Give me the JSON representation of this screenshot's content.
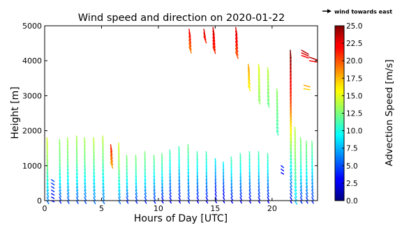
{
  "chart_data": {
    "type": "quiver",
    "title": "Wind speed and direction on 2020-01-22",
    "xlabel": "Hours of Day [UTC]",
    "ylabel": "Height [m]",
    "xlim": [
      0,
      24
    ],
    "ylim": [
      0,
      5000
    ],
    "x_ticks": [
      "0",
      "5",
      "10",
      "15",
      "20"
    ],
    "x_tick_values": [
      0,
      5,
      10,
      15,
      20
    ],
    "y_ticks": [
      "0",
      "1000",
      "2000",
      "3000",
      "4000",
      "5000"
    ],
    "y_tick_values": [
      0,
      1000,
      2000,
      3000,
      4000,
      5000
    ],
    "grid": false,
    "key_label": "wind towards east",
    "colorbar": {
      "label": "Advection Speed [m/s]",
      "range": [
        0,
        25
      ],
      "colormap": "jet",
      "tick_values": [
        0,
        2.5,
        5,
        7.5,
        10,
        12.5,
        15,
        17.5,
        20,
        22.5,
        25
      ],
      "tick_labels": [
        "0.0",
        "2.5",
        "5.0",
        "7.5",
        "10.0",
        "12.5",
        "15.0",
        "17.5",
        "20.0",
        "22.5",
        "25.0"
      ]
    },
    "columns": [
      {
        "hour": 0.2,
        "low": 0,
        "high": 1800,
        "speed": [
          6,
          10,
          13,
          14.5
        ],
        "dir_deg": [
          150,
          165,
          172,
          175
        ]
      },
      {
        "hour": 0.6,
        "low": 0,
        "high": 600,
        "speed": [
          3,
          5
        ],
        "dir_deg": [
          115,
          125
        ]
      },
      {
        "hour": 1.3,
        "low": 0,
        "high": 1750,
        "speed": [
          4,
          9,
          12,
          13
        ],
        "dir_deg": [
          150,
          165,
          172,
          175
        ]
      },
      {
        "hour": 2.0,
        "low": 0,
        "high": 1800,
        "speed": [
          5,
          9,
          12,
          13.5
        ],
        "dir_deg": [
          150,
          165,
          172,
          175
        ]
      },
      {
        "hour": 2.8,
        "low": 0,
        "high": 1850,
        "speed": [
          5,
          9,
          12,
          13.5
        ],
        "dir_deg": [
          150,
          165,
          172,
          175
        ]
      },
      {
        "hour": 3.5,
        "low": 0,
        "high": 1800,
        "speed": [
          5,
          9,
          12,
          13.5
        ],
        "dir_deg": [
          150,
          165,
          172,
          175
        ]
      },
      {
        "hour": 4.3,
        "low": 0,
        "high": 1800,
        "speed": [
          6,
          9,
          12,
          14
        ],
        "dir_deg": [
          150,
          165,
          172,
          175
        ]
      },
      {
        "hour": 5.1,
        "low": 0,
        "high": 1850,
        "speed": [
          6,
          9,
          12,
          14
        ],
        "dir_deg": [
          150,
          165,
          172,
          175
        ]
      },
      {
        "hour": 5.8,
        "low": 1100,
        "high": 1600,
        "speed": [
          18,
          21
        ],
        "dir_deg": [
          160,
          170
        ]
      },
      {
        "hour": 6.5,
        "low": 0,
        "high": 1650,
        "speed": [
          6,
          10,
          13,
          14.5
        ],
        "dir_deg": [
          150,
          165,
          172,
          175
        ]
      },
      {
        "hour": 7.2,
        "low": 0,
        "high": 1300,
        "speed": [
          4,
          8,
          11,
          12.5
        ],
        "dir_deg": [
          150,
          165,
          172,
          175
        ]
      },
      {
        "hour": 8.0,
        "low": 0,
        "high": 1300,
        "speed": [
          4,
          8,
          11,
          12.5
        ],
        "dir_deg": [
          150,
          165,
          172,
          175
        ]
      },
      {
        "hour": 8.8,
        "low": 0,
        "high": 1400,
        "speed": [
          4,
          8,
          11,
          12.5
        ],
        "dir_deg": [
          150,
          165,
          172,
          175
        ]
      },
      {
        "hour": 9.6,
        "low": 0,
        "high": 1300,
        "speed": [
          4,
          7,
          10,
          12
        ],
        "dir_deg": [
          150,
          165,
          172,
          175
        ]
      },
      {
        "hour": 10.3,
        "low": 0,
        "high": 1350,
        "speed": [
          3,
          7,
          10,
          12
        ],
        "dir_deg": [
          150,
          165,
          172,
          175
        ]
      },
      {
        "hour": 11.0,
        "low": 0,
        "high": 1450,
        "speed": [
          3,
          6,
          9,
          11
        ],
        "dir_deg": [
          150,
          165,
          172,
          175
        ]
      },
      {
        "hour": 11.8,
        "low": 0,
        "high": 1550,
        "speed": [
          3,
          6,
          9,
          11
        ],
        "dir_deg": [
          150,
          165,
          172,
          175
        ]
      },
      {
        "hour": 12.6,
        "low": 0,
        "high": 1600,
        "speed": [
          4,
          7,
          10,
          12
        ],
        "dir_deg": [
          150,
          165,
          172,
          175
        ]
      },
      {
        "hour": 12.7,
        "low": 4400,
        "high": 4900,
        "speed": [
          19,
          22
        ],
        "dir_deg": [
          160,
          170
        ]
      },
      {
        "hour": 13.4,
        "low": 0,
        "high": 1400,
        "speed": [
          3,
          6,
          9,
          11
        ],
        "dir_deg": [
          150,
          165,
          172,
          175
        ]
      },
      {
        "hour": 14.0,
        "low": 4700,
        "high": 4900,
        "speed": [
          21,
          23
        ],
        "dir_deg": [
          160,
          170
        ]
      },
      {
        "hour": 14.2,
        "low": 0,
        "high": 1400,
        "speed": [
          3,
          6,
          9,
          11
        ],
        "dir_deg": [
          150,
          165,
          172,
          175
        ]
      },
      {
        "hour": 14.8,
        "low": 4400,
        "high": 4950,
        "speed": [
          21,
          23
        ],
        "dir_deg": [
          160,
          170
        ]
      },
      {
        "hour": 15.0,
        "low": 0,
        "high": 1200,
        "speed": [
          2,
          4,
          7,
          9
        ],
        "dir_deg": [
          150,
          165,
          172,
          175
        ]
      },
      {
        "hour": 15.7,
        "low": 0,
        "high": 1100,
        "speed": [
          2,
          4,
          7,
          9
        ],
        "dir_deg": [
          150,
          165,
          172,
          175
        ]
      },
      {
        "hour": 16.4,
        "low": 0,
        "high": 1250,
        "speed": [
          3,
          6,
          9,
          11
        ],
        "dir_deg": [
          150,
          165,
          172,
          175
        ]
      },
      {
        "hour": 16.8,
        "low": 4250,
        "high": 4950,
        "speed": [
          20,
          23
        ],
        "dir_deg": [
          160,
          170
        ]
      },
      {
        "hour": 17.2,
        "low": 0,
        "high": 1350,
        "speed": [
          3,
          6,
          9,
          11
        ],
        "dir_deg": [
          150,
          165,
          172,
          175
        ]
      },
      {
        "hour": 17.9,
        "low": 3300,
        "high": 3900,
        "speed": [
          16,
          18
        ],
        "dir_deg": [
          160,
          170
        ]
      },
      {
        "hour": 18.0,
        "low": 0,
        "high": 1400,
        "speed": [
          3,
          6,
          9,
          11
        ],
        "dir_deg": [
          150,
          165,
          172,
          175
        ]
      },
      {
        "hour": 18.8,
        "low": 2900,
        "high": 3900,
        "speed": [
          13,
          15
        ],
        "dir_deg": [
          160,
          170
        ]
      },
      {
        "hour": 18.8,
        "low": 0,
        "high": 1400,
        "speed": [
          3,
          6,
          9,
          11
        ],
        "dir_deg": [
          150,
          165,
          172,
          175
        ]
      },
      {
        "hour": 19.6,
        "low": 2800,
        "high": 3800,
        "speed": [
          12,
          14
        ],
        "dir_deg": [
          160,
          170
        ]
      },
      {
        "hour": 19.6,
        "low": 0,
        "high": 1350,
        "speed": [
          3,
          6,
          9,
          11
        ],
        "dir_deg": [
          150,
          165,
          172,
          175
        ]
      },
      {
        "hour": 20.4,
        "low": 2000,
        "high": 3200,
        "speed": [
          11,
          13
        ],
        "dir_deg": [
          160,
          170
        ]
      },
      {
        "hour": 20.8,
        "low": 800,
        "high": 1000,
        "speed": [
          3,
          4
        ],
        "dir_deg": [
          120,
          130
        ]
      },
      {
        "hour": 21.6,
        "low": 0,
        "high": 4300,
        "speed": [
          3,
          12,
          20,
          25
        ],
        "dir_deg": [
          150,
          165,
          172,
          175
        ]
      },
      {
        "hour": 22.0,
        "low": 0,
        "high": 2100,
        "speed": [
          8,
          11,
          13,
          14
        ],
        "dir_deg": [
          150,
          165,
          172,
          175
        ]
      },
      {
        "hour": 22.5,
        "low": 0,
        "high": 1800,
        "speed": [
          4,
          8,
          11,
          12.5
        ],
        "dir_deg": [
          150,
          165,
          172,
          175
        ]
      },
      {
        "hour": 22.6,
        "low": 4150,
        "high": 4300,
        "speed": [
          22,
          24
        ],
        "dir_deg": [
          110,
          120
        ]
      },
      {
        "hour": 23.0,
        "low": 0,
        "high": 1700,
        "speed": [
          4,
          8,
          11,
          12.5
        ],
        "dir_deg": [
          150,
          165,
          172,
          175
        ]
      },
      {
        "hour": 23.3,
        "low": 4000,
        "high": 4100,
        "speed": [
          22,
          24
        ],
        "dir_deg": [
          100,
          110
        ]
      },
      {
        "hour": 23.5,
        "low": 0,
        "high": 1700,
        "speed": [
          4,
          7,
          10,
          12
        ],
        "dir_deg": [
          150,
          165,
          172,
          175
        ]
      },
      {
        "hour": 22.8,
        "low": 3200,
        "high": 3300,
        "speed": [
          17,
          18
        ],
        "dir_deg": [
          100,
          105
        ]
      }
    ]
  }
}
